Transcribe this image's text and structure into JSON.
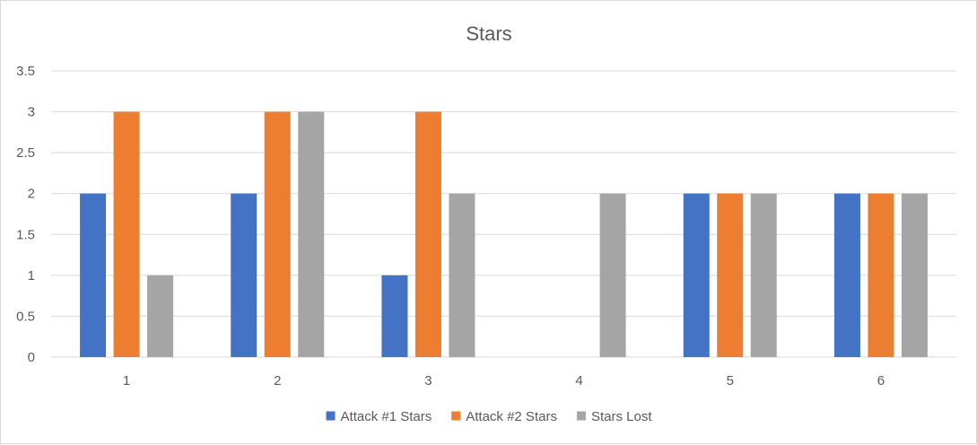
{
  "chart_data": {
    "type": "bar",
    "title": "Stars",
    "xlabel": "",
    "ylabel": "",
    "categories": [
      "1",
      "2",
      "3",
      "4",
      "5",
      "6"
    ],
    "series": [
      {
        "name": "Attack #1 Stars",
        "color": "#4472c4",
        "values": [
          2,
          2,
          1,
          0,
          2,
          2
        ]
      },
      {
        "name": "Attack #2 Stars",
        "color": "#ed7d31",
        "values": [
          3,
          3,
          3,
          0,
          2,
          2
        ]
      },
      {
        "name": "Stars Lost",
        "color": "#a5a5a5",
        "values": [
          1,
          3,
          2,
          2,
          2,
          2
        ]
      }
    ],
    "ylim": [
      0,
      3.5
    ],
    "yticks": [
      "0",
      "0.5",
      "1",
      "1.5",
      "2",
      "2.5",
      "3",
      "3.5"
    ],
    "ytick_values": [
      0,
      0.5,
      1,
      1.5,
      2,
      2.5,
      3,
      3.5
    ],
    "grid": true,
    "gridline_color": "#d9d9d9",
    "legend_position": "bottom"
  }
}
